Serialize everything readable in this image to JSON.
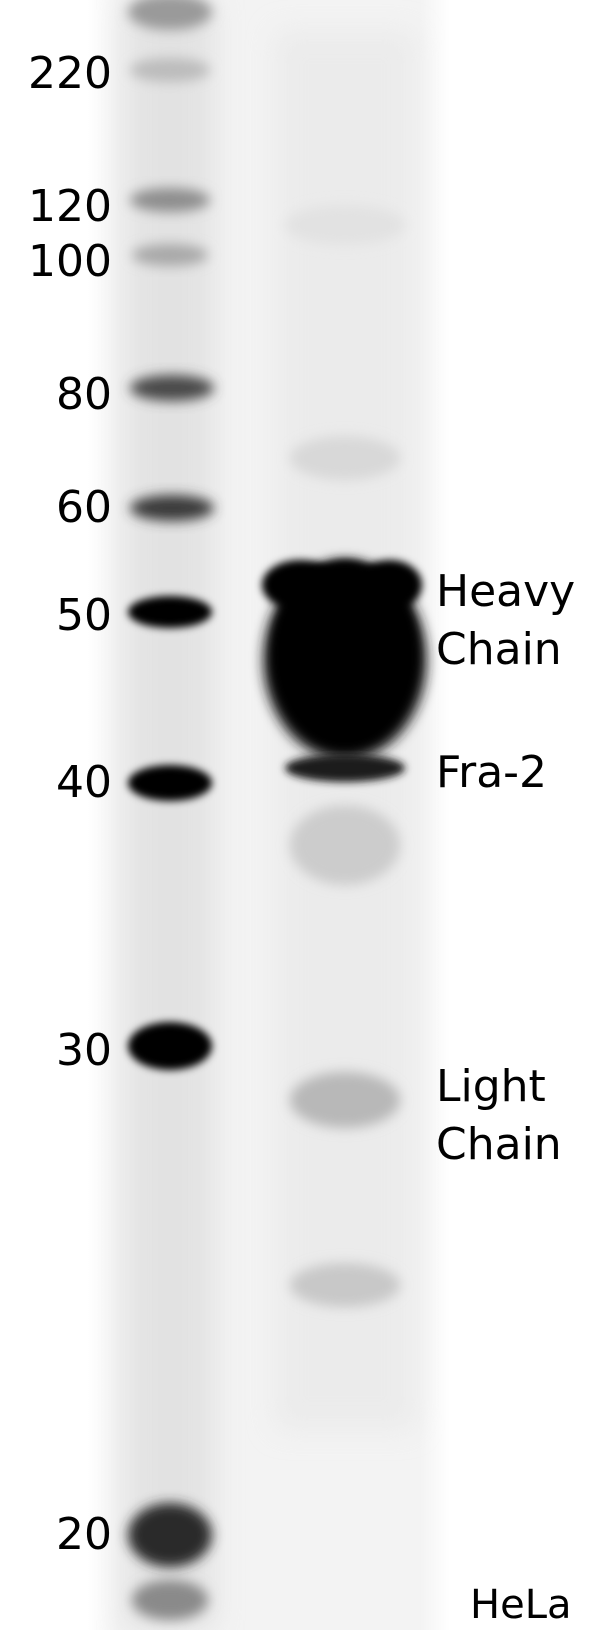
{
  "mw_markers": [
    {
      "label": "220",
      "kda": 220
    },
    {
      "label": "120",
      "kda": 120
    },
    {
      "label": "100",
      "kda": 100
    },
    {
      "label": "80",
      "kda": 80
    },
    {
      "label": "60",
      "kda": 60
    },
    {
      "label": "50",
      "kda": 50
    },
    {
      "label": "40",
      "kda": 40
    },
    {
      "label": "30",
      "kda": 30
    },
    {
      "label": "20",
      "kda": 20
    }
  ],
  "annotations": {
    "heavy_chain": [
      "Heavy",
      "Chain"
    ],
    "fra2": "Fra-2",
    "light_chain": [
      "Light",
      "Chain"
    ]
  },
  "sample": "HeLa",
  "colors": {
    "band": "#000000",
    "background": "#ffffff",
    "membrane": "#f3f3f3"
  }
}
